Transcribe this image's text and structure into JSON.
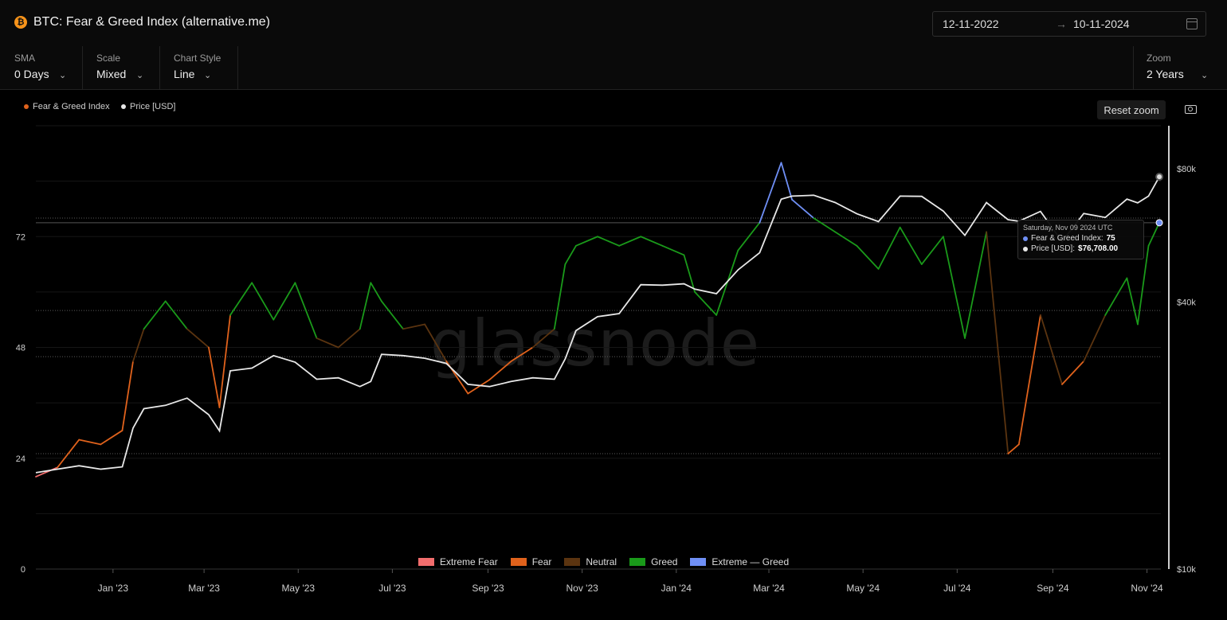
{
  "header": {
    "title": "BTC: Fear & Greed Index (alternative.me)",
    "btc_symbol": "₿",
    "date_from": "12-11-2022",
    "date_arrow": "→",
    "date_to": "10-11-2024"
  },
  "controls": {
    "sma": {
      "label": "SMA",
      "value": "0 Days"
    },
    "scale": {
      "label": "Scale",
      "value": "Mixed"
    },
    "chart_style": {
      "label": "Chart Style",
      "value": "Line"
    },
    "zoom": {
      "label": "Zoom",
      "value": "2 Years"
    }
  },
  "toolbar": {
    "reset_zoom": "Reset zoom",
    "camera_icon": "camera-icon"
  },
  "watermark": "glassnode",
  "tooltip": {
    "date": "Saturday, Nov 09 2024 UTC",
    "fg_label": "Fear & Greed Index:",
    "fg_value": "75",
    "price_label": "Price [USD]:",
    "price_value": "$76,708.00"
  },
  "colors": {
    "extreme_fear": "#f26d6d",
    "fear": "#e0621c",
    "neutral": "#5b3410",
    "greed": "#1a9a1a",
    "extreme_greed": "#6f8ff5",
    "fg_legend": "#e0621c",
    "price": "#e8e8e8"
  },
  "chart_data": {
    "type": "line",
    "legend": [
      "Fear & Greed Index",
      "Price [USD]"
    ],
    "zone_legend": [
      "Extreme Fear",
      "Fear",
      "Neutral",
      "Greed",
      "Extreme — Greed"
    ],
    "left_axis": {
      "ticks": [
        "0",
        "24",
        "48",
        "72"
      ],
      "values": [
        0,
        24,
        48,
        72
      ],
      "range": [
        0,
        96
      ]
    },
    "right_axis": {
      "ticks": [
        "$10k",
        "$40k",
        "$80k"
      ],
      "values": [
        10000,
        40000,
        80000
      ],
      "scale": "log",
      "range": [
        10000,
        100000
      ]
    },
    "x_ticks": [
      "Jan '23",
      "Mar '23",
      "May '23",
      "Jul '23",
      "Sep '23",
      "Nov '23",
      "Jan '24",
      "Mar '24",
      "May '24",
      "Jul '24",
      "Sep '24",
      "Nov '24"
    ],
    "x": [
      "2022-11-12",
      "2022-11-26",
      "2022-12-10",
      "2022-12-24",
      "2023-01-07",
      "2023-01-14",
      "2023-01-21",
      "2023-02-04",
      "2023-02-18",
      "2023-03-04",
      "2023-03-11",
      "2023-03-18",
      "2023-04-01",
      "2023-04-15",
      "2023-04-29",
      "2023-05-13",
      "2023-05-27",
      "2023-06-10",
      "2023-06-17",
      "2023-06-24",
      "2023-07-08",
      "2023-07-22",
      "2023-08-05",
      "2023-08-19",
      "2023-09-02",
      "2023-09-16",
      "2023-09-30",
      "2023-10-14",
      "2023-10-21",
      "2023-10-28",
      "2023-11-11",
      "2023-11-25",
      "2023-12-09",
      "2023-12-23",
      "2024-01-06",
      "2024-01-13",
      "2024-01-27",
      "2024-02-10",
      "2024-02-24",
      "2024-03-09",
      "2024-03-16",
      "2024-03-30",
      "2024-04-13",
      "2024-04-27",
      "2024-05-11",
      "2024-05-25",
      "2024-06-08",
      "2024-06-22",
      "2024-07-06",
      "2024-07-20",
      "2024-08-03",
      "2024-08-10",
      "2024-08-24",
      "2024-09-07",
      "2024-09-21",
      "2024-10-05",
      "2024-10-19",
      "2024-10-26",
      "2024-11-02",
      "2024-11-09"
    ],
    "series": [
      {
        "name": "Fear & Greed Index",
        "axis": "left",
        "values": [
          20,
          22,
          28,
          27,
          30,
          45,
          52,
          58,
          52,
          48,
          35,
          55,
          62,
          54,
          62,
          50,
          48,
          52,
          62,
          58,
          52,
          53,
          45,
          38,
          41,
          45,
          48,
          52,
          66,
          70,
          72,
          70,
          72,
          70,
          68,
          60,
          55,
          69,
          75,
          88,
          80,
          76,
          73,
          70,
          65,
          74,
          66,
          72,
          50,
          73,
          25,
          27,
          55,
          40,
          45,
          55,
          63,
          53,
          70,
          75
        ]
      },
      {
        "name": "Price [USD]",
        "axis": "right",
        "values": [
          16500,
          16800,
          17100,
          16800,
          17000,
          20800,
          23000,
          23400,
          24300,
          22300,
          20500,
          28000,
          28400,
          30300,
          29300,
          26800,
          27000,
          25800,
          26500,
          30500,
          30300,
          29900,
          29100,
          26100,
          25800,
          26500,
          27000,
          26800,
          29800,
          34500,
          37100,
          37700,
          43800,
          43700,
          44000,
          42800,
          41800,
          47300,
          51700,
          68300,
          69400,
          69700,
          67100,
          63300,
          60800,
          69400,
          69300,
          64200,
          56600,
          67100,
          61400,
          60900,
          64100,
          54800,
          63400,
          62100,
          68300,
          67000,
          69400,
          76708
        ]
      }
    ],
    "zone_thresholds": {
      "extreme_fear": [
        0,
        25
      ],
      "fear": [
        25,
        47
      ],
      "neutral": [
        47,
        55
      ],
      "greed": [
        55,
        75
      ],
      "extreme_greed": [
        75,
        100
      ]
    },
    "reference_lines": {
      "fg_highlight": 75,
      "dotted_levels": [
        25,
        46,
        56,
        76
      ]
    }
  }
}
